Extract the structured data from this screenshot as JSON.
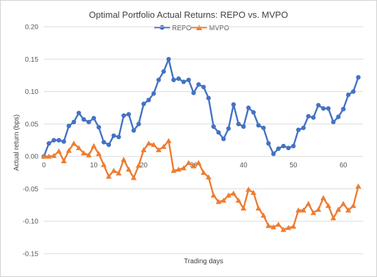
{
  "chart_data": {
    "type": "line",
    "title": "Optimal Portfolio Actual Returns: REPO vs. MVPO",
    "xlabel": "Trading days",
    "ylabel": "Actual return (bps)",
    "xlim": [
      0,
      64
    ],
    "ylim": [
      -0.15,
      0.2
    ],
    "x_ticks": [
      0,
      10,
      20,
      30,
      40,
      50,
      60
    ],
    "y_ticks": [
      -0.15,
      -0.1,
      -0.05,
      0.0,
      0.05,
      0.1,
      0.15,
      0.2
    ],
    "x_tick_labels": [
      "0",
      "10",
      "20",
      "30",
      "40",
      "50",
      "60"
    ],
    "y_tick_labels": [
      "-0.15",
      "-0.10",
      "-0.05",
      "0.00",
      "0.05",
      "0.10",
      "0.15",
      "0.20"
    ],
    "legend": "top",
    "grid": "horizontal",
    "x": [
      0,
      1,
      2,
      3,
      4,
      5,
      6,
      7,
      8,
      9,
      10,
      11,
      12,
      13,
      14,
      15,
      16,
      17,
      18,
      19,
      20,
      21,
      22,
      23,
      24,
      25,
      26,
      27,
      28,
      29,
      30,
      31,
      32,
      33,
      34,
      35,
      36,
      37,
      38,
      39,
      40,
      41,
      42,
      43,
      44,
      45,
      46,
      47,
      48,
      49,
      50,
      51,
      52,
      53,
      54,
      55,
      56,
      57,
      58,
      59,
      60,
      61,
      62,
      63
    ],
    "series": [
      {
        "name": "REPO",
        "color": "#4472c4",
        "marker": "circle",
        "values": [
          0.0,
          0.02,
          0.025,
          0.025,
          0.023,
          0.047,
          0.053,
          0.067,
          0.057,
          0.053,
          0.059,
          0.045,
          0.022,
          0.018,
          0.032,
          0.03,
          0.063,
          0.065,
          0.04,
          0.05,
          0.081,
          0.087,
          0.097,
          0.118,
          0.131,
          0.15,
          0.118,
          0.12,
          0.115,
          0.118,
          0.098,
          0.111,
          0.107,
          0.09,
          0.046,
          0.037,
          0.027,
          0.043,
          0.08,
          0.05,
          0.046,
          0.075,
          0.068,
          0.048,
          0.044,
          0.02,
          0.004,
          0.012,
          0.016,
          0.013,
          0.016,
          0.041,
          0.044,
          0.062,
          0.06,
          0.079,
          0.074,
          0.074,
          0.053,
          0.061,
          0.073,
          0.095,
          0.1,
          0.122
        ]
      },
      {
        "name": "MVPO",
        "color": "#ed7d31",
        "marker": "triangle",
        "values": [
          0.0,
          0.0,
          0.001,
          0.008,
          -0.007,
          0.009,
          0.02,
          0.013,
          0.005,
          0.002,
          0.016,
          0.004,
          -0.013,
          -0.031,
          -0.022,
          -0.026,
          -0.005,
          -0.02,
          -0.033,
          -0.014,
          0.01,
          0.02,
          0.018,
          0.01,
          0.015,
          0.024,
          -0.022,
          -0.02,
          -0.018,
          -0.01,
          -0.015,
          -0.01,
          -0.025,
          -0.032,
          -0.06,
          -0.07,
          -0.068,
          -0.06,
          -0.057,
          -0.068,
          -0.08,
          -0.051,
          -0.056,
          -0.08,
          -0.091,
          -0.107,
          -0.109,
          -0.105,
          -0.113,
          -0.11,
          -0.108,
          -0.083,
          -0.083,
          -0.073,
          -0.087,
          -0.082,
          -0.064,
          -0.076,
          -0.095,
          -0.082,
          -0.073,
          -0.083,
          -0.076,
          -0.046
        ]
      }
    ]
  }
}
